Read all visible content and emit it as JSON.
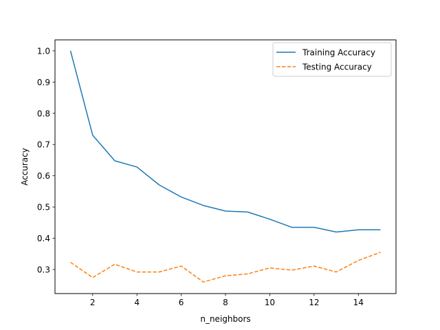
{
  "chart_data": {
    "type": "line",
    "title": "",
    "xlabel": "n_neighbors",
    "ylabel": "Accuracy",
    "xlim": [
      0.3,
      15.7
    ],
    "ylim": [
      0.223,
      1.035
    ],
    "xticks": [
      2,
      4,
      6,
      8,
      10,
      12,
      14
    ],
    "yticks": [
      0.3,
      0.4,
      0.5,
      0.6,
      0.7,
      0.8,
      0.9,
      1.0
    ],
    "xtick_labels": [
      "2",
      "4",
      "6",
      "8",
      "10",
      "12",
      "14"
    ],
    "ytick_labels": [
      "0.3",
      "0.4",
      "0.5",
      "0.6",
      "0.7",
      "0.8",
      "0.9",
      "1.0"
    ],
    "grid": false,
    "legend_position": "top-right",
    "x": [
      1,
      2,
      3,
      4,
      5,
      6,
      7,
      8,
      9,
      10,
      11,
      12,
      13,
      14,
      15
    ],
    "series": [
      {
        "name": "Training Accuracy",
        "color": "#1f77b4",
        "style": "solid",
        "values": [
          1.0,
          0.73,
          0.648,
          0.628,
          0.571,
          0.532,
          0.505,
          0.487,
          0.484,
          0.461,
          0.435,
          0.435,
          0.42,
          0.427,
          0.427
        ]
      },
      {
        "name": "Testing Accuracy",
        "color": "#ff7f0e",
        "style": "dashed",
        "values": [
          0.323,
          0.274,
          0.317,
          0.292,
          0.292,
          0.311,
          0.26,
          0.28,
          0.286,
          0.305,
          0.298,
          0.311,
          0.292,
          0.329,
          0.355
        ]
      }
    ]
  }
}
